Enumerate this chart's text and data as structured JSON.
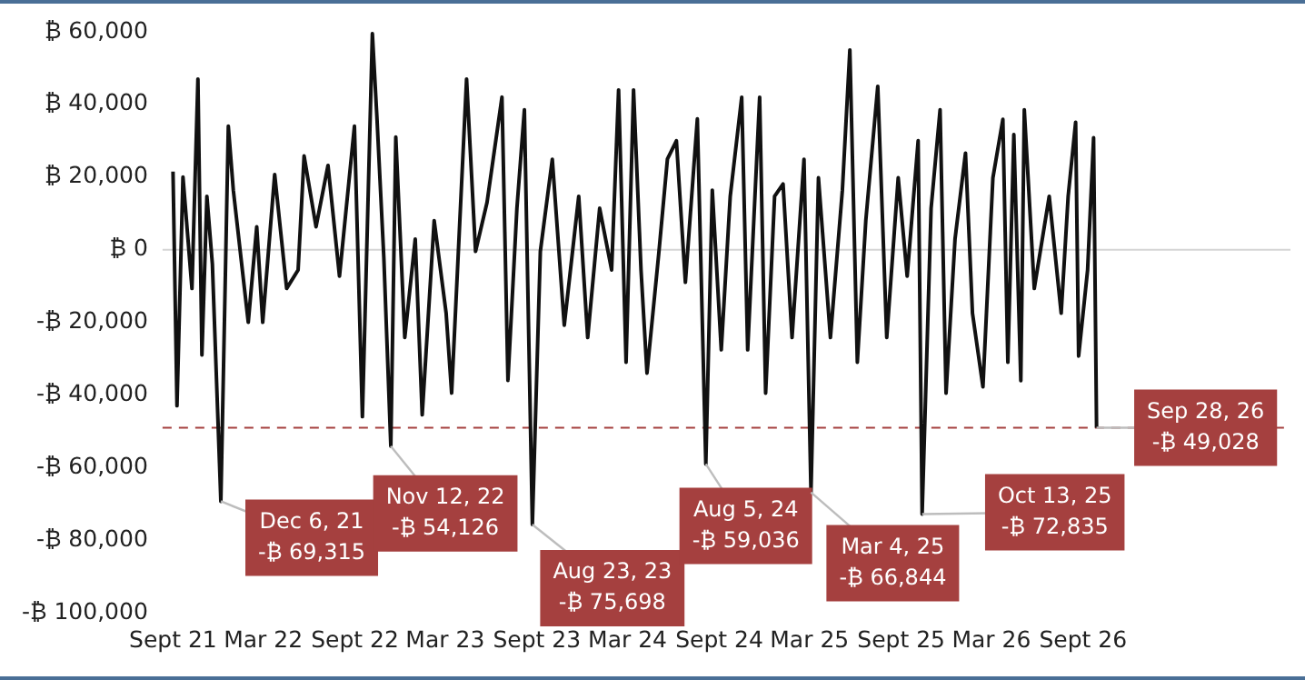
{
  "chart_data": {
    "type": "line",
    "x": [
      "2021-09-01",
      "2021-09-09",
      "2021-09-21",
      "2021-10-09",
      "2021-10-21",
      "2021-10-29",
      "2021-11-08",
      "2021-11-19",
      "2021-12-06",
      "2021-12-21",
      "2021-12-31",
      "2022-01-30",
      "2022-02-16",
      "2022-02-28",
      "2022-03-24",
      "2022-04-17",
      "2022-05-10",
      "2022-05-22",
      "2022-06-15",
      "2022-07-09",
      "2022-08-01",
      "2022-08-31",
      "2022-09-16",
      "2022-10-06",
      "2022-10-15",
      "2022-10-29",
      "2022-11-12",
      "2022-11-22",
      "2022-12-10",
      "2022-12-31",
      "2023-01-14",
      "2023-02-07",
      "2023-03-03",
      "2023-03-14",
      "2023-04-13",
      "2023-05-01",
      "2023-05-24",
      "2023-06-23",
      "2023-07-05",
      "2023-07-23",
      "2023-08-07",
      "2023-08-23",
      "2023-09-08",
      "2023-10-02",
      "2023-10-26",
      "2023-11-24",
      "2023-12-12",
      "2024-01-05",
      "2024-01-29",
      "2024-02-12",
      "2024-02-27",
      "2024-03-13",
      "2024-03-28",
      "2024-04-09",
      "2024-05-03",
      "2024-05-20",
      "2024-06-07",
      "2024-06-25",
      "2024-07-19",
      "2024-08-05",
      "2024-08-18",
      "2024-09-05",
      "2024-09-23",
      "2024-10-16",
      "2024-10-28",
      "2024-11-21",
      "2024-12-03",
      "2024-12-21",
      "2025-01-07",
      "2025-01-25",
      "2025-02-18",
      "2025-03-04",
      "2025-03-19",
      "2025-04-12",
      "2025-05-06",
      "2025-05-21",
      "2025-06-05",
      "2025-06-22",
      "2025-07-16",
      "2025-08-03",
      "2025-08-26",
      "2025-09-13",
      "2025-10-05",
      "2025-10-13",
      "2025-10-31",
      "2025-11-18",
      "2025-11-30",
      "2025-12-18",
      "2026-01-08",
      "2026-01-22",
      "2026-02-12",
      "2026-03-04",
      "2026-03-24",
      "2026-04-03",
      "2026-04-15",
      "2026-04-29",
      "2026-05-06",
      "2026-05-26",
      "2026-06-25",
      "2026-07-19",
      "2026-08-02",
      "2026-08-17",
      "2026-08-23",
      "2026-09-10",
      "2026-09-22",
      "2026-09-28"
    ],
    "series": [
      {
        "color": "#111111",
        "values": [
          21500,
          -43000,
          20000,
          -10700,
          47000,
          -29000,
          14700,
          -4000,
          -69315,
          34000,
          16400,
          -20000,
          6300,
          -20000,
          20700,
          -10700,
          -5600,
          25800,
          6300,
          23200,
          -7300,
          34000,
          -46000,
          59500,
          36800,
          -2200,
          -54126,
          31000,
          -24200,
          2900,
          -45500,
          8000,
          -17500,
          -39500,
          47000,
          -500,
          13000,
          42000,
          -36000,
          11400,
          38500,
          -75698,
          -500,
          24900,
          -20800,
          14700,
          -24200,
          11400,
          -5600,
          44000,
          -31000,
          44000,
          -5600,
          -34000,
          -500,
          25000,
          30000,
          -9000,
          36000,
          -59036,
          16400,
          -27600,
          14700,
          42000,
          -27600,
          42000,
          -39500,
          14700,
          18100,
          -24200,
          24900,
          -66844,
          19800,
          -24200,
          16400,
          55000,
          -31000,
          8000,
          45000,
          -24200,
          19800,
          -7300,
          30000,
          -72835,
          11400,
          38500,
          -39500,
          2900,
          26600,
          -17500,
          -37800,
          19800,
          35900,
          -31000,
          31700,
          -36100,
          38500,
          -10700,
          14700,
          -17500,
          14700,
          35100,
          -29300,
          -5600,
          30800,
          -49028
        ]
      }
    ],
    "xlim": [
      "2021-08-11",
      "2027-10-22"
    ],
    "xticks": [
      {
        "value": "2021-09-01",
        "label": "Sept 21"
      },
      {
        "value": "2022-03-01",
        "label": "Mar 22"
      },
      {
        "value": "2022-09-01",
        "label": "Sept 22"
      },
      {
        "value": "2023-03-01",
        "label": "Mar 23"
      },
      {
        "value": "2023-09-01",
        "label": "Sept 23"
      },
      {
        "value": "2024-03-01",
        "label": "Mar 24"
      },
      {
        "value": "2024-09-01",
        "label": "Sept 24"
      },
      {
        "value": "2025-03-01",
        "label": "Mar 25"
      },
      {
        "value": "2025-09-01",
        "label": "Sept 25"
      },
      {
        "value": "2026-03-01",
        "label": "Mar 26"
      },
      {
        "value": "2026-09-01",
        "label": "Sept 26"
      }
    ],
    "ylim": [
      -100000,
      60000
    ],
    "yticks": [
      {
        "value": 60000,
        "label": "₿ 60,000"
      },
      {
        "value": 40000,
        "label": "₿ 40,000"
      },
      {
        "value": 20000,
        "label": "₿ 20,000"
      },
      {
        "value": 0,
        "label": "₿ 0"
      },
      {
        "value": -20000,
        "label": "-₿ 20,000"
      },
      {
        "value": -40000,
        "label": "-₿ 40,000"
      },
      {
        "value": -60000,
        "label": "-₿ 60,000"
      },
      {
        "value": -80000,
        "label": "-₿ 80,000"
      },
      {
        "value": -100000,
        "label": "-₿ 100,000"
      }
    ],
    "ref_lines": [
      {
        "axis": "y",
        "value": 0,
        "color": "#d4d4d4",
        "line_style": "solid"
      },
      {
        "axis": "y",
        "value": -49028,
        "color": "#a5403f",
        "line_style": "dashed"
      }
    ],
    "annotations": [
      {
        "text": "Dec 6, 21\n-₿ 69,315",
        "x": "2021-12-06",
        "y": -69315
      },
      {
        "text": "Nov 12, 22\n-₿ 54,126",
        "x": "2022-11-12",
        "y": -54126
      },
      {
        "text": "Aug 23, 23\n-₿ 75,698",
        "x": "2023-08-23",
        "y": -75698
      },
      {
        "text": "Aug 5, 24\n-₿ 59,036",
        "x": "2024-08-05",
        "y": -59036
      },
      {
        "text": "Mar 4, 25\n-₿ 66,844",
        "x": "2025-03-04",
        "y": -66844
      },
      {
        "text": "Oct 13, 25\n-₿ 72,835",
        "x": "2025-10-13",
        "y": -72835
      },
      {
        "text": "Sep 28, 26\n-₿ 49,028",
        "x": "2026-09-28",
        "y": -49028
      }
    ],
    "grid": false,
    "legend": false,
    "marker": "none",
    "line_style": "solid"
  }
}
